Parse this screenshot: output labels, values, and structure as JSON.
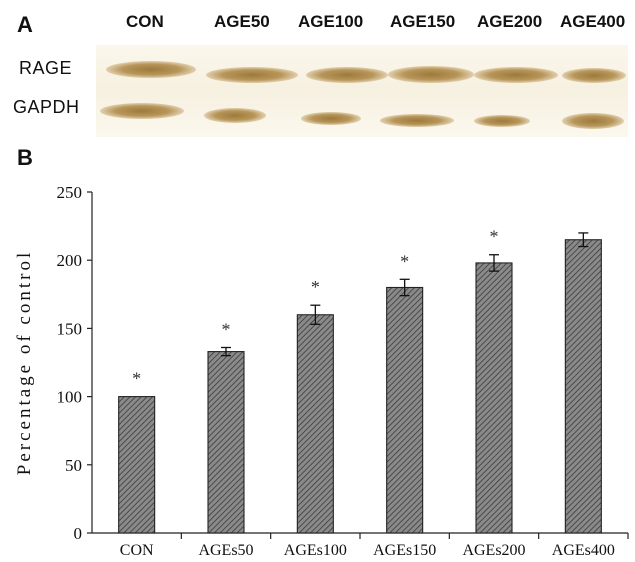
{
  "panel_a": {
    "label": "A",
    "lane_headers": [
      "CON",
      "AGE50",
      "AGE100",
      "AGE150",
      "AGE200",
      "AGE400"
    ],
    "row_labels": [
      "RAGE",
      "GAPDH"
    ]
  },
  "panel_b": {
    "label": "B"
  },
  "chart_data": {
    "type": "bar",
    "categories": [
      "CON",
      "AGEs50",
      "AGEs100",
      "AGEs150",
      "AGEs200",
      "AGEs400"
    ],
    "values": [
      100,
      133,
      160,
      180,
      198,
      215
    ],
    "errors": [
      0,
      3,
      7,
      6,
      6,
      5
    ],
    "significance": [
      "*",
      "*",
      "*",
      "*",
      "*",
      ""
    ],
    "xlabel": "",
    "ylabel": "Percentage of control",
    "ylim": [
      0,
      250
    ],
    "yticks": [
      0,
      50,
      100,
      150,
      200,
      250
    ],
    "grid": false,
    "bar_fill": "hatched-gray"
  }
}
